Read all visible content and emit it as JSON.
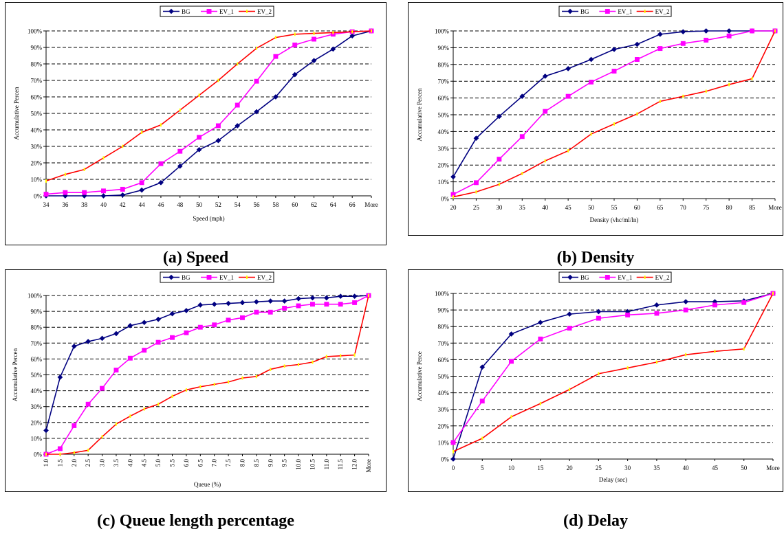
{
  "colors": {
    "BG": "#000080",
    "EV_1": "#ff00ff",
    "EV_2": "#ff0000",
    "marker_EV_2": "#ffff00"
  },
  "captions": [
    "(a) Speed",
    "(b) Density",
    "(c) Queue length percentage",
    "(d) Delay"
  ],
  "chart_data": [
    {
      "type": "line",
      "title": "",
      "xlabel": "Speed (mph)",
      "ylabel": "Accumulative Percen",
      "ylim": [
        0,
        100
      ],
      "ytick_labels": [
        "0%",
        "10%",
        "20%",
        "30%",
        "40%",
        "50%",
        "60%",
        "70%",
        "80%",
        "90%",
        "100%"
      ],
      "categories": [
        "34",
        "36",
        "38",
        "40",
        "42",
        "44",
        "46",
        "48",
        "50",
        "52",
        "54",
        "56",
        "58",
        "60",
        "62",
        "64",
        "66",
        "More"
      ],
      "grid": true,
      "legend": "top-center",
      "series": [
        {
          "name": "BG",
          "values": [
            0,
            0,
            0,
            0,
            0.5,
            3.5,
            8,
            18,
            28,
            33.5,
            42.5,
            51,
            60,
            73.5,
            82,
            89,
            97,
            100
          ]
        },
        {
          "name": "EV_1",
          "values": [
            1,
            2,
            2,
            3,
            4,
            8,
            19.5,
            27,
            35.5,
            42.5,
            55,
            69.5,
            84.5,
            91.5,
            95,
            98,
            99.5,
            100
          ]
        },
        {
          "name": "EV_2",
          "values": [
            9,
            13,
            16,
            23,
            30,
            38.5,
            43,
            52,
            61,
            70,
            80,
            89.5,
            96,
            98,
            98.5,
            99,
            99.5,
            100
          ]
        }
      ]
    },
    {
      "type": "line",
      "title": "",
      "xlabel": "Density (vhc/ml/ln)",
      "ylabel": "Accumulative Percen",
      "ylim": [
        0,
        100
      ],
      "ytick_labels": [
        "0%",
        "10%",
        "20%",
        "30%",
        "40%",
        "50%",
        "60%",
        "70%",
        "80%",
        "90%",
        "100%"
      ],
      "categories": [
        "20",
        "25",
        "30",
        "35",
        "40",
        "45",
        "50",
        "55",
        "60",
        "65",
        "70",
        "75",
        "80",
        "85",
        "More"
      ],
      "grid": true,
      "legend": "top-center",
      "series": [
        {
          "name": "BG",
          "values": [
            13,
            36,
            49,
            61,
            73,
            77.5,
            83,
            89,
            92,
            98,
            99.5,
            100,
            100,
            100,
            100
          ]
        },
        {
          "name": "EV_1",
          "values": [
            2.5,
            9.5,
            23.5,
            37,
            52,
            61,
            69.5,
            76,
            83,
            89.5,
            92.5,
            94.5,
            97,
            100,
            100
          ]
        },
        {
          "name": "EV_2",
          "values": [
            1,
            4,
            8.5,
            15,
            22.5,
            28.5,
            38.5,
            44.5,
            50.5,
            58,
            61,
            64,
            68,
            71.5,
            100
          ]
        }
      ]
    },
    {
      "type": "line",
      "title": "",
      "xlabel": "Queue (%)",
      "ylabel": "Accumulative Percen",
      "ylim": [
        0,
        100
      ],
      "ytick_labels": [
        "0%",
        "10%",
        "20%",
        "30%",
        "40%",
        "50%",
        "60%",
        "70%",
        "80%",
        "90%",
        "100%"
      ],
      "categories": [
        "1.0",
        "1.5",
        "2.0",
        "2.5",
        "3.0",
        "3.5",
        "4.0",
        "4.5",
        "5.0",
        "5.5",
        "6.0",
        "6.5",
        "7.0",
        "7.5",
        "8.0",
        "8.5",
        "9.0",
        "9.5",
        "10.0",
        "10.5",
        "11.0",
        "11.5",
        "12.0",
        "More"
      ],
      "xtick_rotation": -90,
      "grid": true,
      "legend": "top-center",
      "series": [
        {
          "name": "BG",
          "values": [
            15,
            48.5,
            68,
            71,
            73,
            76,
            81,
            83,
            85,
            88.5,
            90.5,
            94,
            94.5,
            95,
            95.5,
            96,
            96.5,
            96.5,
            98,
            98.5,
            98.5,
            99.5,
            99.5,
            100
          ]
        },
        {
          "name": "EV_1",
          "values": [
            0,
            3.5,
            18,
            31.5,
            41.5,
            53,
            60.5,
            65.5,
            70.5,
            73.5,
            76.5,
            80,
            81.5,
            84.5,
            86,
            89.5,
            89.5,
            92,
            93.5,
            94.5,
            94.5,
            94.5,
            95.5,
            100
          ]
        },
        {
          "name": "EV_2",
          "values": [
            0,
            0,
            1,
            2.5,
            11,
            19,
            24,
            28.5,
            31.5,
            36.5,
            40.5,
            42.5,
            44,
            45.5,
            48,
            49,
            53.5,
            55.5,
            56.5,
            58,
            61.5,
            62,
            62.5,
            100
          ]
        }
      ]
    },
    {
      "type": "line",
      "title": "",
      "xlabel": "Delay (sec)",
      "ylabel": "Accumulative Perce",
      "ylim": [
        0,
        100
      ],
      "ytick_labels": [
        "0%",
        "10%",
        "20%",
        "30%",
        "40%",
        "50%",
        "60%",
        "70%",
        "80%",
        "90%",
        "100%"
      ],
      "categories": [
        "0",
        "5",
        "10",
        "15",
        "20",
        "25",
        "30",
        "35",
        "40",
        "45",
        "50",
        "More"
      ],
      "grid": true,
      "legend": "top-center",
      "series": [
        {
          "name": "BG",
          "values": [
            0,
            55.5,
            75.5,
            82.5,
            87.5,
            89,
            89,
            93,
            95,
            95,
            95.5,
            100
          ]
        },
        {
          "name": "EV_1",
          "values": [
            10,
            35,
            59,
            72.5,
            79,
            85,
            87,
            88,
            90,
            93,
            94.5,
            100
          ]
        },
        {
          "name": "EV_2",
          "values": [
            4.5,
            12.5,
            25.5,
            33.5,
            42,
            51.5,
            55,
            58.5,
            63,
            65,
            66.5,
            100
          ]
        }
      ]
    }
  ]
}
